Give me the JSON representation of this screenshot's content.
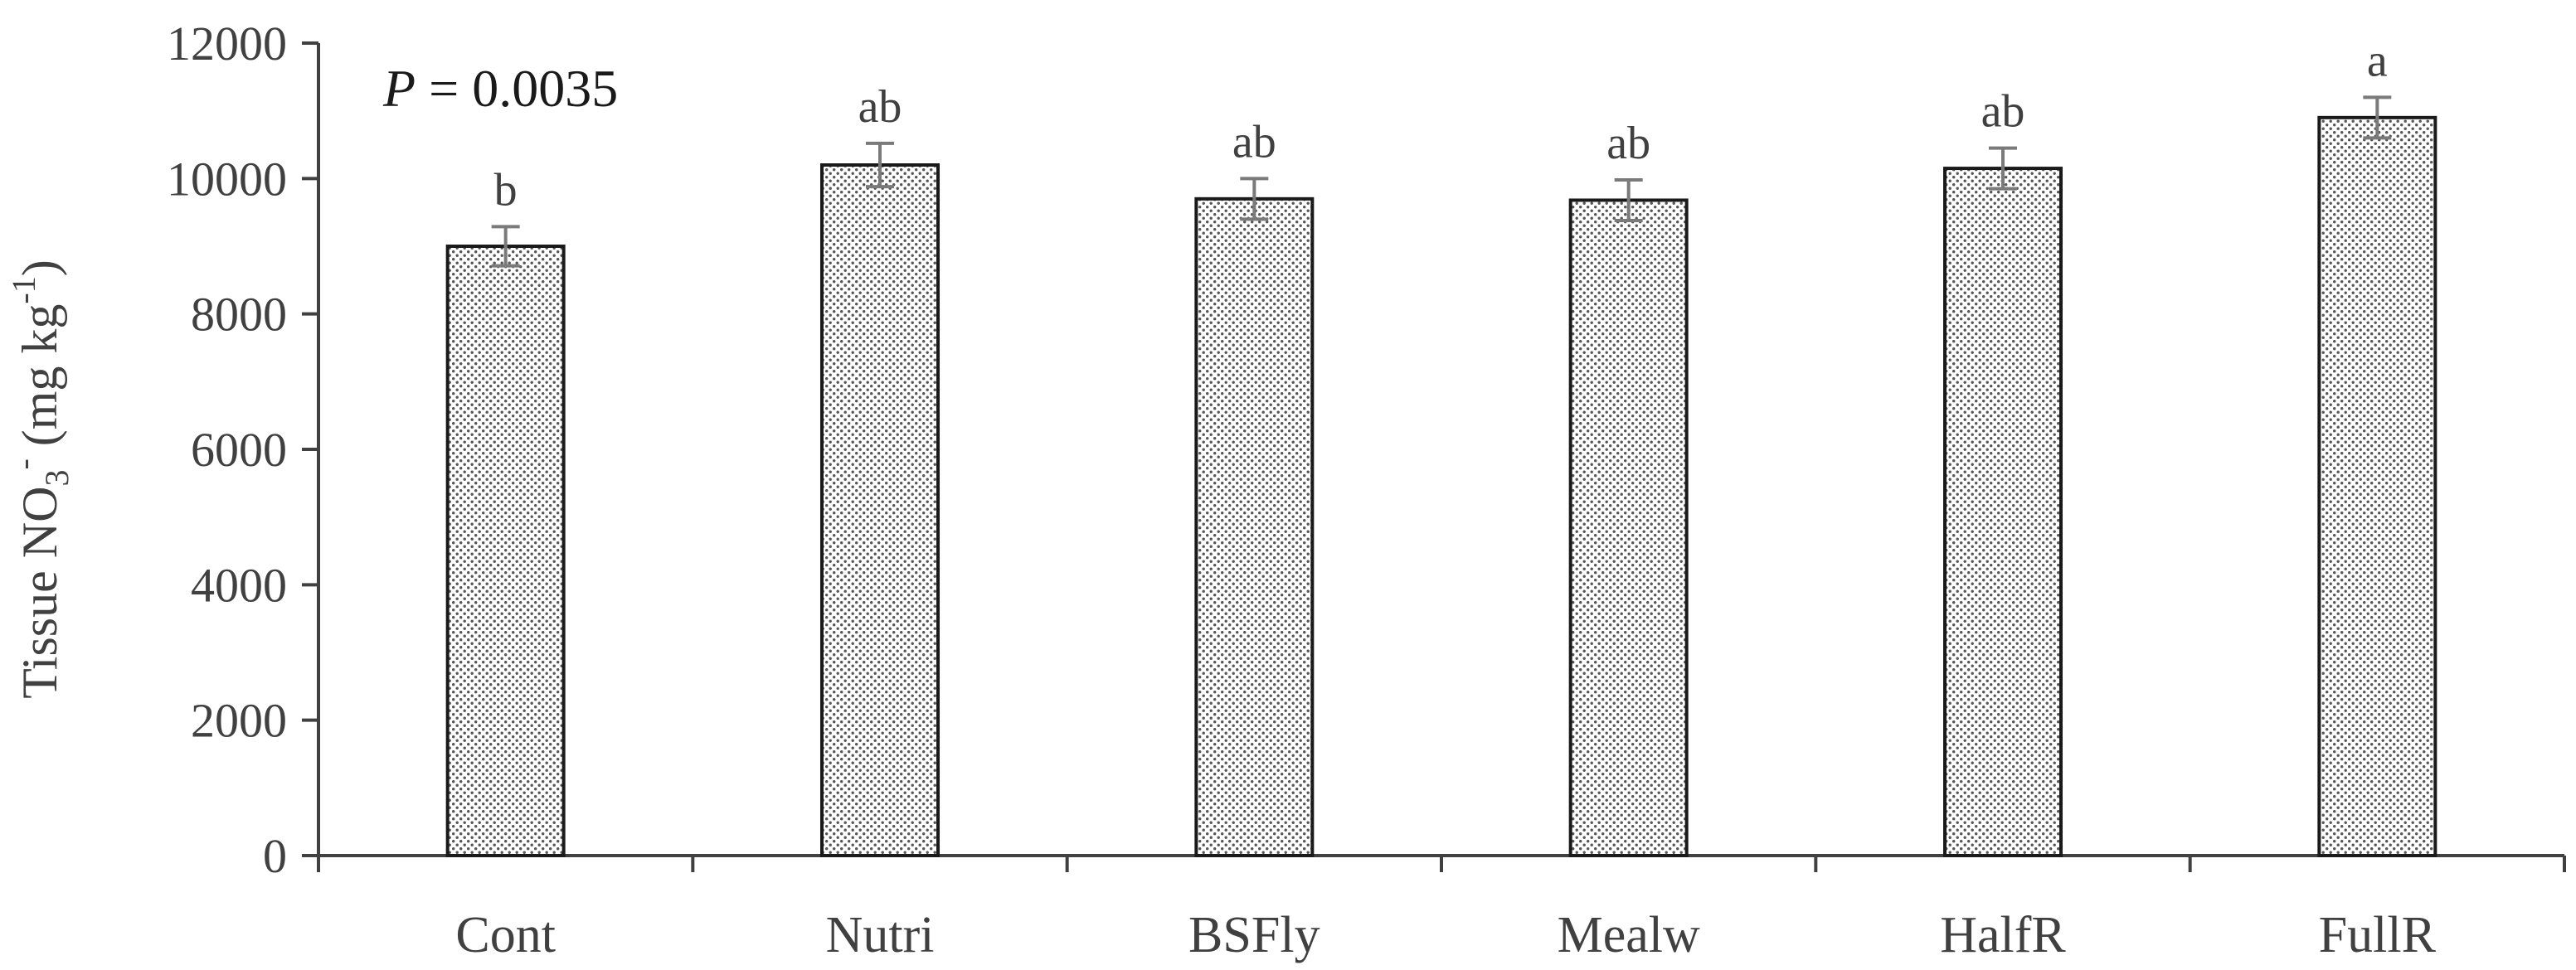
{
  "chart_data": {
    "type": "bar",
    "categories": [
      "Cont",
      "Nutri",
      "BSFly",
      "Mealw",
      "HalfR",
      "FullR"
    ],
    "values": [
      9000,
      10200,
      9700,
      9680,
      10150,
      10900
    ],
    "errors": [
      290,
      320,
      300,
      300,
      300,
      300
    ],
    "significance_letters": [
      "b",
      "ab",
      "ab",
      "ab",
      "ab",
      "a"
    ],
    "ylabel": {
      "prefix": "Tissue NO",
      "sub": "3",
      "sup_charge": "-",
      "unit_open": " (mg kg",
      "unit_sup": "-1",
      "unit_close": ")"
    },
    "annotation": {
      "p_symbol": "P",
      "p_rest": " = 0.0035"
    },
    "ylim": [
      0,
      12000
    ],
    "yticks": [
      0,
      2000,
      4000,
      6000,
      8000,
      10000,
      12000
    ],
    "grid": false,
    "legend": "none",
    "colors": {
      "axis": "#404040",
      "bar_edge": "#1a1a1a",
      "bar_fill": "#ffffff",
      "bar_dots": "#555555",
      "error_bar": "#7a7a7a"
    }
  }
}
